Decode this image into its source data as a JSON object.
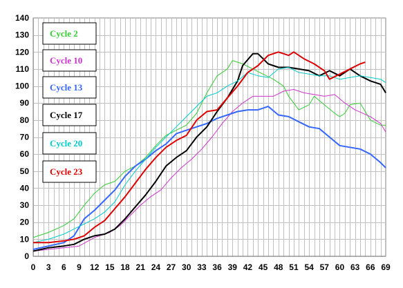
{
  "chart_data": {
    "type": "line",
    "title": "",
    "xlabel": "",
    "ylabel": "",
    "xlim": [
      0,
      69
    ],
    "ylim": [
      0,
      140
    ],
    "x_ticks": [
      0,
      3,
      6,
      9,
      12,
      15,
      18,
      21,
      24,
      27,
      30,
      33,
      36,
      39,
      42,
      45,
      48,
      51,
      54,
      57,
      60,
      63,
      66,
      69
    ],
    "y_ticks": [
      0,
      10,
      20,
      30,
      40,
      50,
      60,
      70,
      80,
      90,
      100,
      110,
      120,
      130,
      140
    ],
    "grid": true,
    "legend_position": "top-left",
    "series": [
      {
        "name": "Cycle 2",
        "color": "#33cc33",
        "points": [
          [
            0,
            11
          ],
          [
            3,
            14
          ],
          [
            6,
            18
          ],
          [
            8,
            22
          ],
          [
            10,
            30
          ],
          [
            12,
            37
          ],
          [
            14,
            42
          ],
          [
            16,
            44
          ],
          [
            18,
            50
          ],
          [
            20,
            53
          ],
          [
            22,
            58
          ],
          [
            24,
            65
          ],
          [
            26,
            71
          ],
          [
            28,
            74
          ],
          [
            30,
            77
          ],
          [
            32,
            84
          ],
          [
            34,
            96
          ],
          [
            36,
            106
          ],
          [
            38,
            110
          ],
          [
            39,
            115
          ],
          [
            41,
            113
          ],
          [
            43,
            110
          ],
          [
            45,
            107
          ],
          [
            47,
            104
          ],
          [
            49,
            100
          ],
          [
            50,
            94
          ],
          [
            52,
            86
          ],
          [
            54,
            89
          ],
          [
            55,
            94
          ],
          [
            57,
            89
          ],
          [
            59,
            84
          ],
          [
            60,
            82
          ],
          [
            61,
            84
          ],
          [
            62,
            89
          ],
          [
            64,
            90
          ],
          [
            66,
            80
          ],
          [
            68,
            77
          ],
          [
            69,
            77
          ]
        ]
      },
      {
        "name": "Cycle 10",
        "color": "#cc33cc",
        "points": [
          [
            0,
            3
          ],
          [
            3,
            4
          ],
          [
            6,
            5
          ],
          [
            9,
            6
          ],
          [
            12,
            11
          ],
          [
            15,
            14
          ],
          [
            17,
            18
          ],
          [
            19,
            24
          ],
          [
            21,
            30
          ],
          [
            23,
            35
          ],
          [
            25,
            39
          ],
          [
            27,
            46
          ],
          [
            29,
            52
          ],
          [
            31,
            57
          ],
          [
            33,
            63
          ],
          [
            35,
            70
          ],
          [
            37,
            78
          ],
          [
            39,
            85
          ],
          [
            41,
            90
          ],
          [
            43,
            94
          ],
          [
            45,
            94
          ],
          [
            47,
            94
          ],
          [
            49,
            97
          ],
          [
            51,
            98
          ],
          [
            53,
            96
          ],
          [
            55,
            95
          ],
          [
            57,
            94
          ],
          [
            59,
            95
          ],
          [
            61,
            90
          ],
          [
            63,
            86
          ],
          [
            66,
            82
          ],
          [
            68,
            78
          ],
          [
            69,
            73
          ]
        ]
      },
      {
        "name": "Cycle 13",
        "color": "#3366ff",
        "points": [
          [
            0,
            4
          ],
          [
            3,
            6
          ],
          [
            6,
            8
          ],
          [
            8,
            12
          ],
          [
            10,
            22
          ],
          [
            12,
            27
          ],
          [
            14,
            33
          ],
          [
            16,
            39
          ],
          [
            18,
            47
          ],
          [
            20,
            53
          ],
          [
            22,
            57
          ],
          [
            24,
            62
          ],
          [
            26,
            66
          ],
          [
            28,
            72
          ],
          [
            30,
            74
          ],
          [
            32,
            76
          ],
          [
            34,
            78
          ],
          [
            36,
            81
          ],
          [
            38,
            83
          ],
          [
            40,
            85
          ],
          [
            42,
            86
          ],
          [
            44,
            86
          ],
          [
            46,
            88
          ],
          [
            48,
            83
          ],
          [
            50,
            82
          ],
          [
            52,
            79
          ],
          [
            54,
            76
          ],
          [
            56,
            75
          ],
          [
            58,
            70
          ],
          [
            60,
            65
          ],
          [
            62,
            64
          ],
          [
            64,
            63
          ],
          [
            66,
            60
          ],
          [
            68,
            55
          ],
          [
            69,
            52
          ]
        ]
      },
      {
        "name": "Cycle 17",
        "color": "#000000",
        "points": [
          [
            0,
            3
          ],
          [
            3,
            5
          ],
          [
            6,
            6
          ],
          [
            8,
            7
          ],
          [
            10,
            10
          ],
          [
            12,
            12
          ],
          [
            14,
            13
          ],
          [
            16,
            16
          ],
          [
            18,
            22
          ],
          [
            20,
            29
          ],
          [
            22,
            36
          ],
          [
            24,
            44
          ],
          [
            26,
            53
          ],
          [
            28,
            58
          ],
          [
            30,
            62
          ],
          [
            32,
            70
          ],
          [
            34,
            76
          ],
          [
            36,
            85
          ],
          [
            38,
            93
          ],
          [
            40,
            103
          ],
          [
            41,
            112
          ],
          [
            43,
            119
          ],
          [
            44,
            119
          ],
          [
            45,
            116
          ],
          [
            46,
            113
          ],
          [
            48,
            111
          ],
          [
            50,
            111
          ],
          [
            52,
            110
          ],
          [
            54,
            109
          ],
          [
            56,
            106
          ],
          [
            58,
            109
          ],
          [
            60,
            106
          ],
          [
            62,
            110
          ],
          [
            64,
            106
          ],
          [
            66,
            103
          ],
          [
            68,
            101
          ],
          [
            69,
            96
          ]
        ]
      },
      {
        "name": "Cycle 20",
        "color": "#00cccc",
        "points": [
          [
            0,
            8
          ],
          [
            3,
            10
          ],
          [
            6,
            13
          ],
          [
            8,
            16
          ],
          [
            10,
            19
          ],
          [
            12,
            22
          ],
          [
            14,
            26
          ],
          [
            16,
            32
          ],
          [
            18,
            42
          ],
          [
            20,
            50
          ],
          [
            22,
            57
          ],
          [
            24,
            64
          ],
          [
            26,
            70
          ],
          [
            28,
            76
          ],
          [
            30,
            82
          ],
          [
            32,
            88
          ],
          [
            34,
            94
          ],
          [
            36,
            96
          ],
          [
            38,
            100
          ],
          [
            40,
            103
          ],
          [
            42,
            108
          ],
          [
            44,
            106
          ],
          [
            46,
            105
          ],
          [
            48,
            110
          ],
          [
            50,
            111
          ],
          [
            52,
            108
          ],
          [
            54,
            107
          ],
          [
            56,
            106
          ],
          [
            58,
            106
          ],
          [
            60,
            104
          ],
          [
            62,
            105
          ],
          [
            64,
            106
          ],
          [
            66,
            105
          ],
          [
            68,
            104
          ],
          [
            69,
            102
          ]
        ]
      },
      {
        "name": "Cycle 23",
        "color": "#dd0000",
        "points": [
          [
            0,
            8
          ],
          [
            3,
            8
          ],
          [
            6,
            9
          ],
          [
            8,
            10
          ],
          [
            10,
            12
          ],
          [
            12,
            17
          ],
          [
            14,
            21
          ],
          [
            16,
            28
          ],
          [
            18,
            35
          ],
          [
            20,
            43
          ],
          [
            22,
            51
          ],
          [
            24,
            58
          ],
          [
            26,
            64
          ],
          [
            28,
            68
          ],
          [
            30,
            71
          ],
          [
            32,
            80
          ],
          [
            34,
            85
          ],
          [
            36,
            86
          ],
          [
            38,
            93
          ],
          [
            40,
            100
          ],
          [
            42,
            108
          ],
          [
            44,
            112
          ],
          [
            45,
            115
          ],
          [
            46,
            118
          ],
          [
            48,
            120
          ],
          [
            50,
            118
          ],
          [
            51,
            120
          ],
          [
            53,
            116
          ],
          [
            55,
            113
          ],
          [
            57,
            109
          ],
          [
            58,
            104
          ],
          [
            60,
            107
          ],
          [
            62,
            110
          ],
          [
            64,
            113
          ],
          [
            65,
            114
          ]
        ]
      }
    ]
  }
}
